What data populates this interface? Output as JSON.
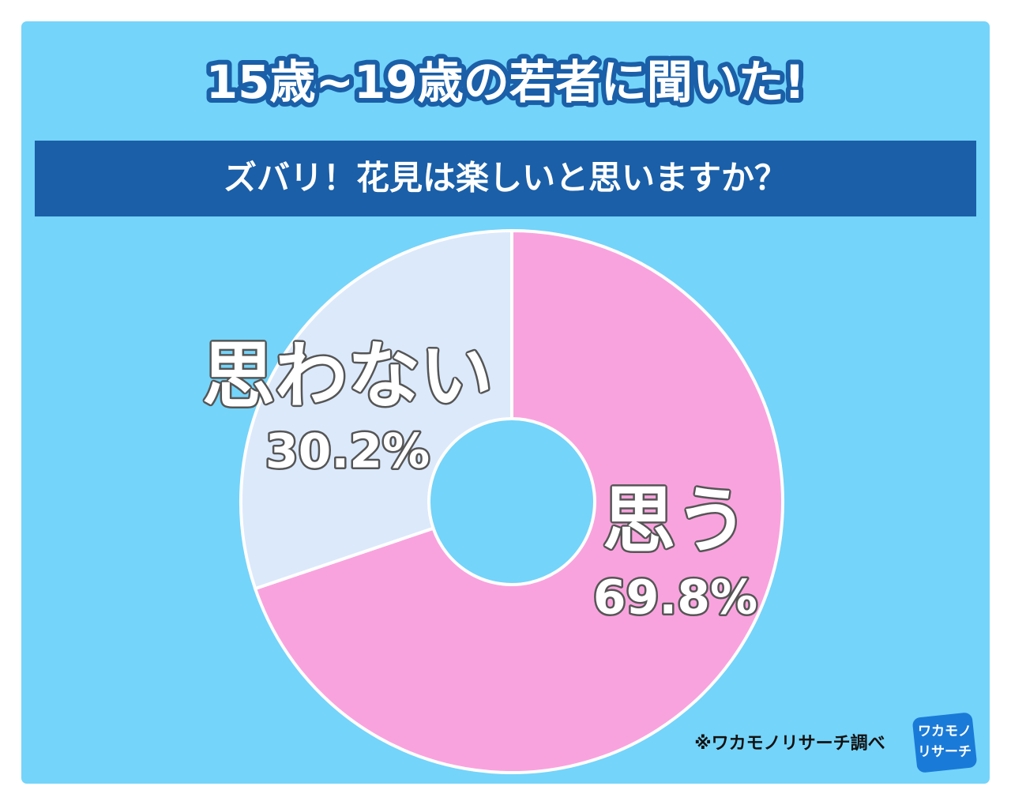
{
  "chart_data": {
    "type": "donut",
    "title": "15歳~19歳の若者に聞いた!",
    "subtitle": "ズバリ！花見は楽しいと思いますか？",
    "categories": [
      "思う",
      "思わない"
    ],
    "values": [
      69.8,
      30.2
    ],
    "value_labels": [
      "69.8%",
      "30.2%"
    ],
    "colors": [
      "#f9a3de",
      "#dbe9fb"
    ],
    "source": "※ワカモノリサーチ調べ",
    "logo_text": [
      "ワカモノ",
      "リサーチ"
    ]
  }
}
